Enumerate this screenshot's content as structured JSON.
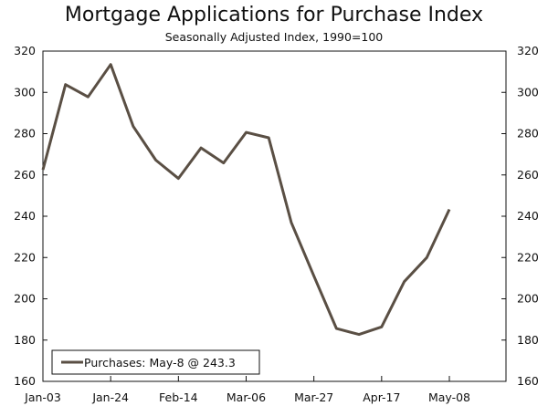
{
  "chart_data": {
    "type": "line",
    "title": "Mortgage Applications for Purchase Index",
    "subtitle": "Seasonally Adjusted Index, 1990=100",
    "x_tick_labels": [
      "Jan-03",
      "Jan-24",
      "Feb-14",
      "Mar-06",
      "Mar-27",
      "Apr-17",
      "May-08"
    ],
    "y_ticks": [
      160,
      180,
      200,
      220,
      240,
      260,
      280,
      300,
      320
    ],
    "ylim": [
      160,
      320
    ],
    "grid": false,
    "legend_position": "bottom-left",
    "series": [
      {
        "name": "Purchases: May-8 @ 243.3",
        "color": "#5a4f44",
        "values": [
          262.5,
          303.8,
          297.8,
          313.5,
          283.5,
          267.2,
          258.3,
          273.1,
          265.8,
          280.6,
          278.0,
          237.0,
          211.0,
          185.6,
          182.7,
          186.4,
          208.3,
          220.0,
          243.3
        ]
      }
    ]
  }
}
